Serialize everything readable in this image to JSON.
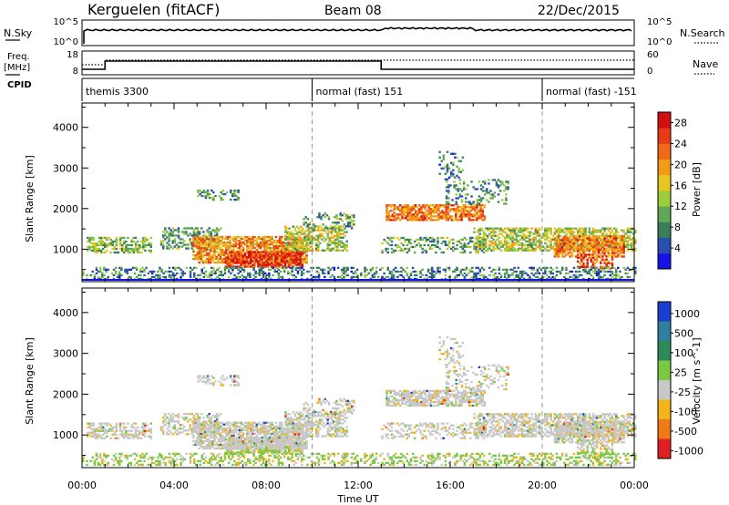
{
  "header": {
    "title": "Kerguelen (fitACF)",
    "beam": "Beam 08",
    "date": "22/Dec/2015"
  },
  "nsky_panel": {
    "left_label": "N.Sky",
    "left_ticks": [
      "10^5",
      "10^0"
    ],
    "right_label": "N.Search",
    "right_ticks": [
      "10^5",
      "10^0"
    ]
  },
  "freq_panel": {
    "left_label_line1": "Freq.",
    "left_label_line2": "[MHz]",
    "left_ticks": [
      "18",
      "8"
    ],
    "right_label": "Nave",
    "right_ticks": [
      "60",
      "0"
    ]
  },
  "cpid": {
    "label": "CPID",
    "segments": [
      {
        "start_hour": 0,
        "name": "themis 3300"
      },
      {
        "start_hour": 10,
        "name": "normal (fast) 151"
      },
      {
        "start_hour": 20,
        "name": "normal (fast) -151"
      }
    ]
  },
  "x_axis": {
    "label": "Time UT",
    "ticks": [
      "00:00",
      "04:00",
      "08:00",
      "12:00",
      "16:00",
      "20:00",
      "00:00"
    ]
  },
  "chart_data": [
    {
      "type": "heatmap",
      "name": "power",
      "ylabel": "Slant Range [km]",
      "yticks": [
        "1000",
        "2000",
        "3000",
        "4000"
      ],
      "ylim": [
        200,
        4600
      ],
      "xlim_hours": [
        0,
        24
      ],
      "colorbar": {
        "label": "Power [dB]",
        "ticks": [
          "4",
          "8",
          "12",
          "16",
          "20",
          "24",
          "28"
        ],
        "range": [
          0,
          30
        ],
        "colors": [
          "#1414e6",
          "#2a4fb0",
          "#3a7f5a",
          "#5fa85a",
          "#9ccc3a",
          "#e8c820",
          "#f29b18",
          "#ef6a16",
          "#e83a14",
          "#d01010"
        ]
      }
    },
    {
      "type": "heatmap",
      "name": "velocity",
      "ylabel": "Slant Range [km]",
      "yticks": [
        "1000",
        "2000",
        "3000",
        "4000"
      ],
      "ylim": [
        200,
        4600
      ],
      "xlim_hours": [
        0,
        24
      ],
      "colorbar": {
        "label": "Velocity [m s^-1]",
        "ticks": [
          "1000",
          "500",
          "100",
          "25",
          "-25",
          "-100",
          "-500",
          "-1000"
        ],
        "colors": [
          "#1a3fd0",
          "#2f7fa0",
          "#2e8b57",
          "#7ac943",
          "#c8c8c8",
          "#f2b418",
          "#f07a18",
          "#e02020"
        ]
      }
    }
  ]
}
